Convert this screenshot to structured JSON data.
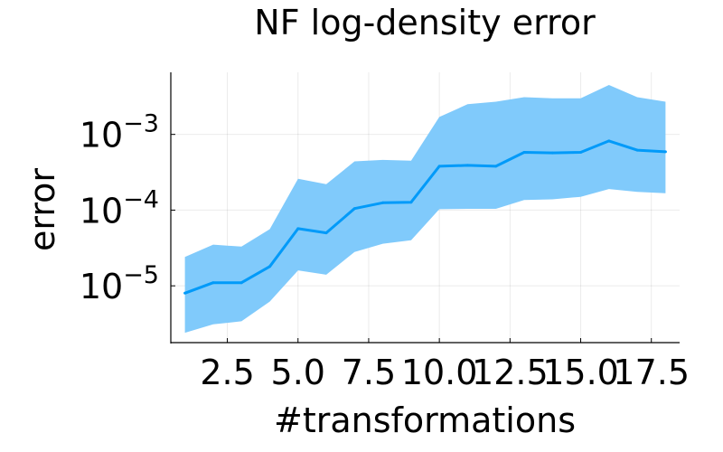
{
  "chart_data": {
    "type": "line",
    "title": "NF log-density error",
    "xlabel": "#transformations",
    "ylabel": "error",
    "yscale": "log10",
    "xlim": [
      0.5,
      18.5
    ],
    "ylim_log10": [
      -5.75,
      -2.18
    ],
    "xticks": [
      2.5,
      5.0,
      7.5,
      10.0,
      12.5,
      15.0,
      17.5
    ],
    "xtick_labels": [
      "2.5",
      "5.0",
      "7.5",
      "10.0",
      "12.5",
      "15.0",
      "17.5"
    ],
    "yticks": [
      {
        "base": "10",
        "exp": "−5",
        "value": 1e-05
      },
      {
        "base": "10",
        "exp": "−4",
        "value": 0.0001
      },
      {
        "base": "10",
        "exp": "−3",
        "value": 0.001
      }
    ],
    "grid": true,
    "legend": "none",
    "colors": {
      "line": "#009AF9",
      "band": "#80CAFB"
    },
    "series": [
      {
        "x": [
          1,
          2,
          3,
          4,
          5,
          6,
          7,
          8,
          9,
          10,
          11,
          12,
          13,
          14,
          15,
          16,
          17,
          18
        ],
        "y": [
          8e-06,
          1.1e-05,
          1.1e-05,
          1.8e-05,
          5.7e-05,
          5e-05,
          0.000105,
          0.000125,
          0.000127,
          0.00038,
          0.00039,
          0.00038,
          0.00058,
          0.00057,
          0.00058,
          0.00082,
          0.00062,
          0.00059
        ],
        "lower": [
          2.4e-06,
          3.1e-06,
          3.4e-06,
          6.2e-06,
          1.6e-05,
          1.4e-05,
          2.8e-05,
          3.6e-05,
          4e-05,
          0.000103,
          0.000104,
          0.000104,
          0.000136,
          0.000139,
          0.00015,
          0.00019,
          0.000174,
          0.000167
        ],
        "upper": [
          2.4e-05,
          3.5e-05,
          3.3e-05,
          5.6e-05,
          0.00026,
          0.00022,
          0.00044,
          0.00046,
          0.00045,
          0.0017,
          0.0025,
          0.0027,
          0.0031,
          0.003,
          0.003,
          0.0045,
          0.0031,
          0.0027
        ]
      }
    ]
  }
}
